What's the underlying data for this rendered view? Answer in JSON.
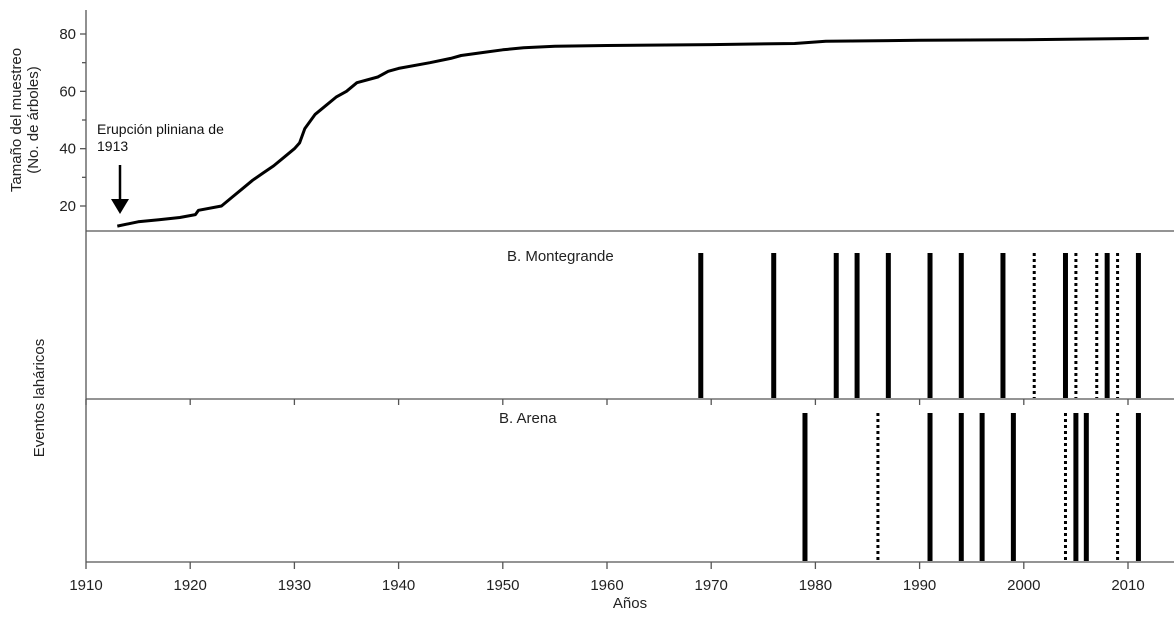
{
  "chart_data": {
    "type": "line",
    "xlabel": "Años",
    "xlim": [
      1910,
      2012
    ],
    "xticks": [
      1910,
      1920,
      1930,
      1940,
      1950,
      1960,
      1970,
      1980,
      1990,
      2000,
      2010
    ],
    "top_panel": {
      "ylabel_line1": "Tamaño del muestreo",
      "ylabel_line2": "(No. de árboles)",
      "ylim": [
        12,
        88
      ],
      "yticks": [
        20,
        40,
        60,
        80
      ],
      "annotation_line1": "Erupción pliniana de",
      "annotation_line2": "1913",
      "series": [
        {
          "x": [
            1913,
            1915,
            1917,
            1919,
            1920.5,
            1920.8,
            1923,
            1924,
            1925,
            1926,
            1927,
            1928,
            1929,
            1930,
            1930.5,
            1931,
            1932,
            1933,
            1934,
            1935,
            1936,
            1938,
            1939,
            1940,
            1943,
            1945,
            1946,
            1948,
            1950,
            1952,
            1955,
            1960,
            1970,
            1978,
            1981,
            1990,
            2000,
            2012
          ],
          "y": [
            13,
            14.5,
            15.2,
            16,
            17,
            18.5,
            20,
            23,
            26,
            29,
            31.5,
            34,
            37,
            40,
            42,
            47,
            52,
            55,
            58,
            60,
            63,
            65,
            67,
            68,
            70,
            71.5,
            72.5,
            73.5,
            74.5,
            75.2,
            75.7,
            76,
            76.3,
            76.7,
            77.5,
            77.8,
            78,
            78.5
          ]
        }
      ]
    },
    "events_ylabel": "Eventos laháricos",
    "montegrande": {
      "label": "B. Montegrande",
      "solid": [
        1969,
        1976,
        1982,
        1984,
        1987,
        1991,
        1994,
        1998,
        2004,
        2008,
        2011
      ],
      "dotted": [
        2001,
        2005,
        2007,
        2009
      ]
    },
    "arena": {
      "label": "B. Arena",
      "solid": [
        1979,
        1991,
        1994,
        1996,
        1999,
        2005,
        2006,
        2011
      ],
      "dotted": [
        1986,
        2004,
        2009
      ]
    }
  }
}
